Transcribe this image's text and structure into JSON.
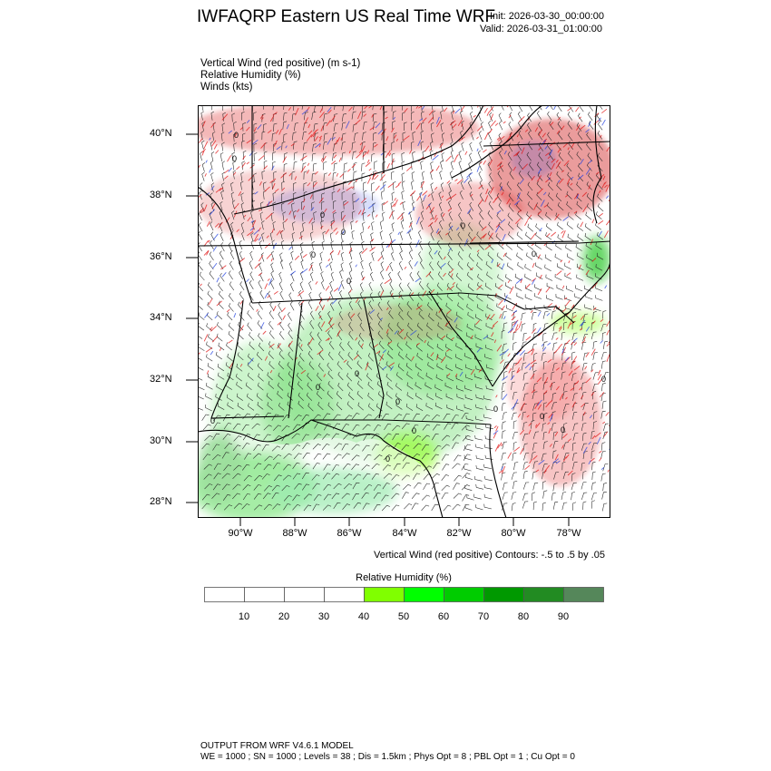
{
  "header": {
    "title": "IWFAQRP Eastern US Real Time WRF",
    "init": "Init: 2026-03-30_00:00:00",
    "valid": "Valid: 2026-03-31_01:00:00"
  },
  "fields": [
    "Vertical Wind (red positive)   (m s-1)",
    "Relative Humidity   (%)",
    "Winds   (kts)"
  ],
  "axes": {
    "lat_labels": [
      "40°N",
      "38°N",
      "36°N",
      "34°N",
      "32°N",
      "30°N",
      "28°N"
    ],
    "lon_labels": [
      "90°W",
      "88°W",
      "86°W",
      "84°W",
      "82°W",
      "80°W",
      "78°W"
    ]
  },
  "contour_note": "Vertical Wind (red positive) Contours: -.5 to .5 by .05",
  "colorbar": {
    "title": "Relative Humidity  (%)",
    "labels": [
      "10",
      "20",
      "30",
      "40",
      "50",
      "60",
      "70",
      "80",
      "90"
    ],
    "colors": [
      "#ffffff",
      "#ffffff",
      "#ffffff",
      "#ffffff",
      "#80ff00",
      "#00ff00",
      "#00cc00",
      "#009900",
      "#228b22",
      "#55875a"
    ]
  },
  "map": {
    "contour_label": "0",
    "colors": {
      "updraft": "#e01010",
      "downdraft": "#2040e0",
      "humid": "#00c000",
      "state_lines": "#000000"
    }
  },
  "footer": {
    "line1": "OUTPUT FROM WRF V4.6.1 MODEL",
    "line2": "WE = 1000 ; SN = 1000 ; Levels = 38 ; Dis = 1.5km ; Phys Opt = 8 ; PBL Opt = 1 ; Cu Opt = 0"
  }
}
